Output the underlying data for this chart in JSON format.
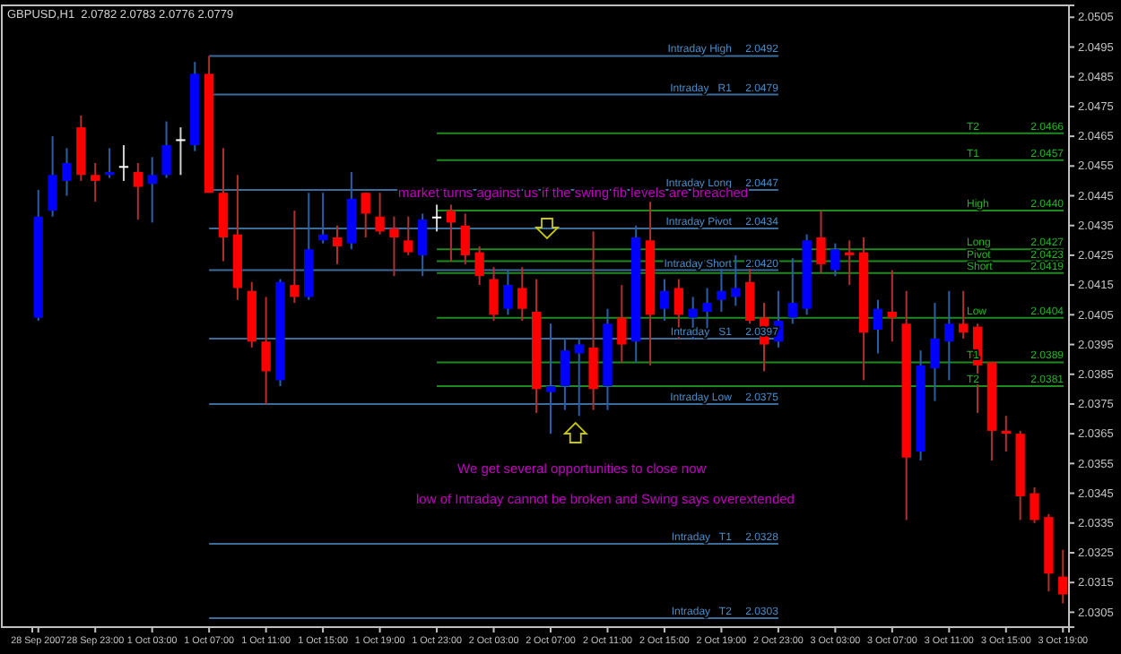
{
  "chart_data": {
    "type": "candlestick",
    "title": "GBPUSD,H1  2.0782 2.0783 2.0776 2.0779",
    "categories": [
      "28 Sep 2007",
      null,
      null,
      null,
      "28 Sep 23:00",
      null,
      null,
      null,
      "1 Oct 03:00",
      null,
      null,
      null,
      "1 Oct 07:00",
      null,
      null,
      null,
      "1 Oct 11:00",
      null,
      null,
      null,
      "1 Oct 15:00",
      null,
      null,
      null,
      "1 Oct 19:00",
      null,
      null,
      null,
      "1 Oct 23:00",
      null,
      null,
      null,
      "2 Oct 03:00",
      null,
      null,
      null,
      "2 Oct 07:00",
      null,
      null,
      null,
      "2 Oct 11:00",
      null,
      null,
      null,
      "2 Oct 15:00",
      null,
      null,
      null,
      "2 Oct 19:00",
      null,
      null,
      null,
      "2 Oct 23:00",
      null,
      null,
      null,
      "3 Oct 03:00",
      null,
      null,
      null,
      "3 Oct 07:00",
      null,
      null,
      null,
      "3 Oct 11:00",
      null,
      null,
      null,
      "3 Oct 15:00",
      null,
      null,
      null,
      "3 Oct 19:00"
    ],
    "ohlc": [
      [
        2.0404,
        2.0447,
        2.0403,
        2.0438
      ],
      [
        2.044,
        2.0465,
        2.0438,
        2.0452
      ],
      [
        2.045,
        2.0461,
        2.0445,
        2.0456
      ],
      [
        2.0468,
        2.0472,
        2.045,
        2.0452
      ],
      [
        2.0452,
        2.0456,
        2.0443,
        2.045
      ],
      [
        2.0452,
        2.0461,
        2.0451,
        2.0453
      ],
      [
        2.0455,
        2.0462,
        2.045,
        2.0455
      ],
      [
        2.0453,
        2.0456,
        2.0437,
        2.0448
      ],
      [
        2.0449,
        2.0458,
        2.0436,
        2.0452
      ],
      [
        2.0452,
        2.047,
        2.0451,
        2.0462
      ],
      [
        2.0464,
        2.0468,
        2.0452,
        2.0464
      ],
      [
        2.0462,
        2.049,
        2.046,
        2.0486
      ],
      [
        2.0486,
        2.0492,
        2.0446,
        2.0446
      ],
      [
        2.0446,
        2.0461,
        2.0423,
        2.0431
      ],
      [
        2.0432,
        2.0452,
        2.041,
        2.0414
      ],
      [
        2.0413,
        2.0416,
        2.0394,
        2.0396
      ],
      [
        2.0396,
        2.0411,
        2.0375,
        2.0386
      ],
      [
        2.0383,
        2.0417,
        2.0381,
        2.0416
      ],
      [
        2.0415,
        2.044,
        2.0409,
        2.0411
      ],
      [
        2.0411,
        2.0446,
        2.041,
        2.0427
      ],
      [
        2.043,
        2.0446,
        2.0429,
        2.0432
      ],
      [
        2.0431,
        2.0435,
        2.0422,
        2.0428
      ],
      [
        2.0429,
        2.0453,
        2.0427,
        2.0444
      ],
      [
        2.0446,
        2.0446,
        2.0431,
        2.0439
      ],
      [
        2.0438,
        2.0446,
        2.0432,
        2.0433
      ],
      [
        2.0434,
        2.0438,
        2.0418,
        2.0431
      ],
      [
        2.043,
        2.0438,
        2.0425,
        2.0426
      ],
      [
        2.0425,
        2.0439,
        2.0418,
        2.0437
      ],
      [
        2.0438,
        2.0442,
        2.0433,
        2.0438
      ],
      [
        2.044,
        2.0442,
        2.0423,
        2.0436
      ],
      [
        2.0435,
        2.0439,
        2.0422,
        2.0425
      ],
      [
        2.0426,
        2.0428,
        2.0415,
        2.0418
      ],
      [
        2.0417,
        2.0421,
        2.0403,
        2.0405
      ],
      [
        2.0407,
        2.042,
        2.0405,
        2.0415
      ],
      [
        2.0414,
        2.0421,
        2.0403,
        2.0407
      ],
      [
        2.0406,
        2.0417,
        2.0372,
        2.038
      ],
      [
        2.0379,
        2.0402,
        2.0365,
        2.0381
      ],
      [
        2.0381,
        2.0397,
        2.0373,
        2.0393
      ],
      [
        2.0392,
        2.0397,
        2.0371,
        2.0395
      ],
      [
        2.0394,
        2.0433,
        2.0373,
        2.038
      ],
      [
        2.0381,
        2.0407,
        2.0373,
        2.0402
      ],
      [
        2.0404,
        2.0415,
        2.0389,
        2.0395
      ],
      [
        2.0396,
        2.0435,
        2.0389,
        2.0431
      ],
      [
        2.043,
        2.0443,
        2.0388,
        2.0405
      ],
      [
        2.0407,
        2.0417,
        2.0403,
        2.0413
      ],
      [
        2.0414,
        2.0417,
        2.0397,
        2.0405
      ],
      [
        2.0404,
        2.0411,
        2.0397,
        2.0407
      ],
      [
        2.0406,
        2.0414,
        2.0399,
        2.0409
      ],
      [
        2.041,
        2.0421,
        2.0406,
        2.0413
      ],
      [
        2.0411,
        2.0425,
        2.0408,
        2.0414
      ],
      [
        2.0416,
        2.0421,
        2.0402,
        2.0403
      ],
      [
        2.0404,
        2.0409,
        2.0386,
        2.0395
      ],
      [
        2.0396,
        2.0413,
        2.0394,
        2.0403
      ],
      [
        2.0404,
        2.0424,
        2.0402,
        2.0409
      ],
      [
        2.0407,
        2.0432,
        2.0405,
        2.043
      ],
      [
        2.0431,
        2.044,
        2.0419,
        2.0422
      ],
      [
        2.042,
        2.0429,
        2.0418,
        2.0427
      ],
      [
        2.0426,
        2.043,
        2.0415,
        2.0425
      ],
      [
        2.0426,
        2.0431,
        2.0383,
        2.0399
      ],
      [
        2.04,
        2.041,
        2.0392,
        2.0407
      ],
      [
        2.0406,
        2.042,
        2.0396,
        2.0404
      ],
      [
        2.0402,
        2.0413,
        2.0336,
        2.0357
      ],
      [
        2.0359,
        2.0393,
        2.0356,
        2.0388
      ],
      [
        2.0387,
        2.0409,
        2.0376,
        2.0397
      ],
      [
        2.0396,
        2.0413,
        2.0383,
        2.0402
      ],
      [
        2.0402,
        2.0413,
        2.0397,
        2.0399
      ],
      [
        2.0401,
        2.0402,
        2.0372,
        2.0388
      ],
      [
        2.0389,
        2.0389,
        2.0356,
        2.0366
      ],
      [
        2.0366,
        2.0371,
        2.0359,
        2.0365
      ],
      [
        2.0365,
        2.0366,
        2.0336,
        2.0344
      ],
      [
        2.0345,
        2.0347,
        2.0335,
        2.0336
      ],
      [
        2.0337,
        2.0338,
        2.0312,
        2.0318
      ],
      [
        2.0317,
        2.0326,
        2.0308,
        2.0311
      ]
    ],
    "ylim": [
      2.03,
      2.0509
    ],
    "yticks": [
      2.0305,
      2.0315,
      2.0325,
      2.0335,
      2.0345,
      2.0355,
      2.0365,
      2.0375,
      2.0385,
      2.0395,
      2.0405,
      2.0415,
      2.0425,
      2.0435,
      2.0445,
      2.0455,
      2.0465,
      2.0475,
      2.0485,
      2.0495,
      2.0505
    ],
    "ref_lines": [
      {
        "axis": "y",
        "value": 2.0492,
        "label": "Intraday High",
        "color": "#3a6d9a"
      },
      {
        "axis": "y",
        "value": 2.0479,
        "label": "Intraday   R1",
        "color": "#3a6d9a"
      },
      {
        "axis": "y",
        "value": 2.0447,
        "label": "Intraday Long",
        "color": "#3a6d9a"
      },
      {
        "axis": "y",
        "value": 2.0434,
        "label": "Intraday Pivot",
        "color": "#3a6d9a"
      },
      {
        "axis": "y",
        "value": 2.042,
        "label": "Intraday Short",
        "color": "#3a6d9a"
      },
      {
        "axis": "y",
        "value": 2.0397,
        "label": "Intraday   S1",
        "color": "#3a6d9a"
      },
      {
        "axis": "y",
        "value": 2.0375,
        "label": "Intraday Low",
        "color": "#3a6d9a"
      },
      {
        "axis": "y",
        "value": 2.0328,
        "label": "Intraday   T1",
        "color": "#3a6d9a"
      },
      {
        "axis": "y",
        "value": 2.0303,
        "label": "Intraday   T2",
        "color": "#3a6d9a"
      },
      {
        "axis": "y",
        "value": 2.0466,
        "label": "T2",
        "color": "#1f8a1f"
      },
      {
        "axis": "y",
        "value": 2.0457,
        "label": "T1",
        "color": "#1f8a1f"
      },
      {
        "axis": "y",
        "value": 2.044,
        "label": "High",
        "color": "#1f8a1f"
      },
      {
        "axis": "y",
        "value": 2.0427,
        "label": "Long",
        "color": "#1f8a1f"
      },
      {
        "axis": "y",
        "value": 2.0423,
        "label": "Pivot",
        "color": "#1f8a1f"
      },
      {
        "axis": "y",
        "value": 2.0419,
        "label": "Short",
        "color": "#1f8a1f"
      },
      {
        "axis": "y",
        "value": 2.0404,
        "label": "Low",
        "color": "#1f8a1f"
      },
      {
        "axis": "y",
        "value": 2.0389,
        "label": "T1",
        "color": "#1f8a1f"
      },
      {
        "axis": "y",
        "value": 2.0381,
        "label": "T2",
        "color": "#1f8a1f"
      }
    ],
    "annotations": [
      "market turns against us if the swing fib levels are breached",
      "We get several opportunities to close now",
      "low of Intraday cannot be broken and Swing says overextended",
      {
        "text": "2.0492",
        "y": 2.0492
      },
      {
        "text": "2.0479",
        "y": 2.0479
      },
      {
        "text": "2.0447",
        "y": 2.0447
      },
      {
        "text": "2.0434",
        "y": 2.0434
      },
      {
        "text": "2.0420",
        "y": 2.042
      },
      {
        "text": "2.0397",
        "y": 2.0397
      },
      {
        "text": "2.0375",
        "y": 2.0375
      },
      {
        "text": "2.0328",
        "y": 2.0328
      },
      {
        "text": "2.0303",
        "y": 2.0303
      },
      {
        "text": "2.0466",
        "y": 2.0466
      },
      {
        "text": "2.0457",
        "y": 2.0457
      },
      {
        "text": "2.0440",
        "y": 2.044
      },
      {
        "text": "2.0427",
        "y": 2.0427
      },
      {
        "text": "2.0423",
        "y": 2.0423
      },
      {
        "text": "2.0419",
        "y": 2.0419
      },
      {
        "text": "2.0404",
        "y": 2.0404
      },
      {
        "text": "2.0389",
        "y": 2.0389
      },
      {
        "text": "2.0381",
        "y": 2.0381
      }
    ],
    "grid": false
  }
}
